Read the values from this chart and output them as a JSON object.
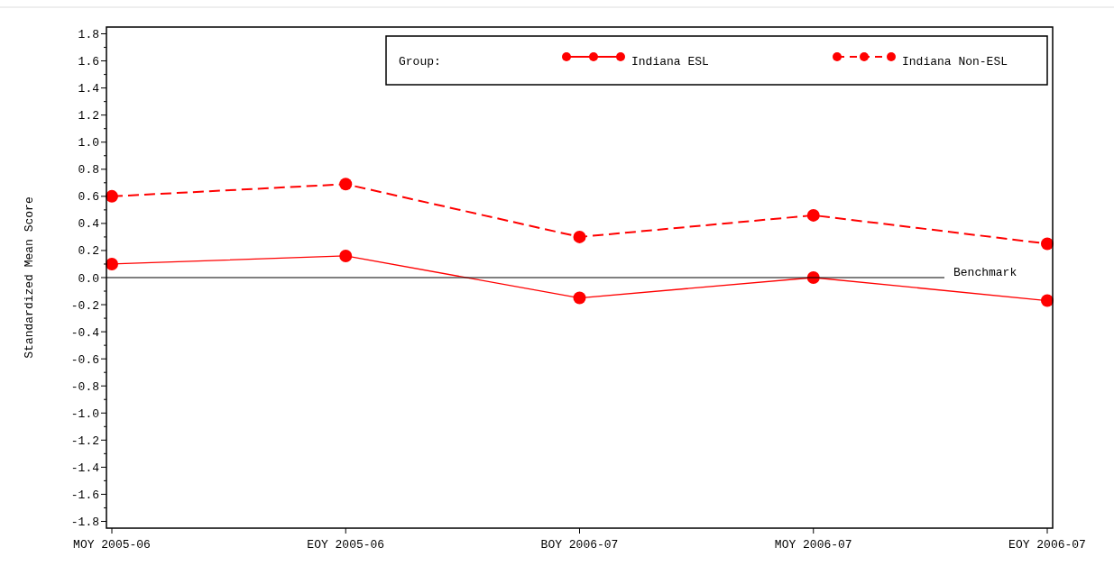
{
  "chart_data": {
    "type": "line",
    "ylabel": "Standardized Mean Score",
    "legend_title": "Group:",
    "legend": "top right",
    "marker": "circle",
    "categories": [
      "MOY 2005-06",
      "EOY 2005-06",
      "BOY 2006-07",
      "MOY 2006-07",
      "EOY 2006-07"
    ],
    "series": [
      {
        "name": "Indiana ESL",
        "color": "#ff0000",
        "line_style": "solid",
        "values": [
          0.1,
          0.16,
          -0.15,
          0.0,
          -0.17
        ]
      },
      {
        "name": "Indiana Non-ESL",
        "color": "#ff0000",
        "line_style": "dashed",
        "values": [
          0.6,
          0.69,
          0.3,
          0.46,
          0.25
        ]
      }
    ],
    "ylim": [
      -1.85,
      1.85
    ],
    "yticks": [
      {
        "value": -1.8,
        "label": "-1.8"
      },
      {
        "value": -1.6,
        "label": "-1.6"
      },
      {
        "value": -1.4,
        "label": "-1.4"
      },
      {
        "value": -1.2,
        "label": "-1.2"
      },
      {
        "value": -1.0,
        "label": "-1.0"
      },
      {
        "value": -0.8,
        "label": "-0.8"
      },
      {
        "value": -0.6,
        "label": "-0.6"
      },
      {
        "value": -0.4,
        "label": "-0.4"
      },
      {
        "value": -0.2,
        "label": "-0.2"
      },
      {
        "value": 0,
        "label": "0.0"
      },
      {
        "value": 0.2,
        "label": "0.2"
      },
      {
        "value": 0.4,
        "label": "0.4"
      },
      {
        "value": 0.6,
        "label": "0.6"
      },
      {
        "value": 0.8,
        "label": "0.8"
      },
      {
        "value": 1.0,
        "label": "1.0"
      },
      {
        "value": 1.2,
        "label": "1.2"
      },
      {
        "value": 1.4,
        "label": "1.4"
      },
      {
        "value": 1.6,
        "label": "1.6"
      },
      {
        "value": 1.8,
        "label": "1.8"
      }
    ],
    "ref_lines": [
      {
        "axis": "y",
        "value": 0,
        "label": "Benchmark",
        "color": "#000000"
      }
    ]
  }
}
